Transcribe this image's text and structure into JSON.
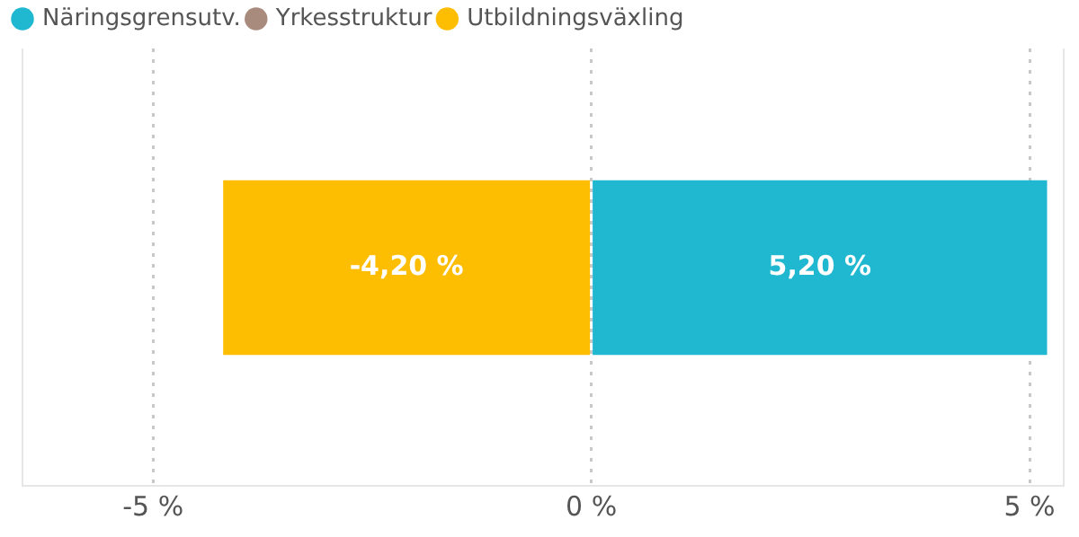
{
  "chart_data": {
    "type": "bar",
    "orientation": "horizontal",
    "stacked": true,
    "categories": [
      null
    ],
    "series": [
      {
        "name": "Näringsgrensutv.",
        "color": "#1fb8d0",
        "values": [
          5.2
        ],
        "value_labels": [
          "5,20 %"
        ]
      },
      {
        "name": "Yrkesstruktur",
        "color": "#a98b7e",
        "values": [
          null
        ]
      },
      {
        "name": "Utbildningsväxling",
        "color": "#fdbd00",
        "values": [
          -4.2
        ],
        "value_labels": [
          "-4,20 %"
        ]
      }
    ],
    "xlim": [
      -6.5,
      5.4
    ],
    "xticks": [
      {
        "value": -5,
        "label": "-5 %"
      },
      {
        "value": 0,
        "label": "0 %"
      },
      {
        "value": 5,
        "label": "5 %"
      }
    ],
    "grid": "x",
    "legend": "top left"
  }
}
